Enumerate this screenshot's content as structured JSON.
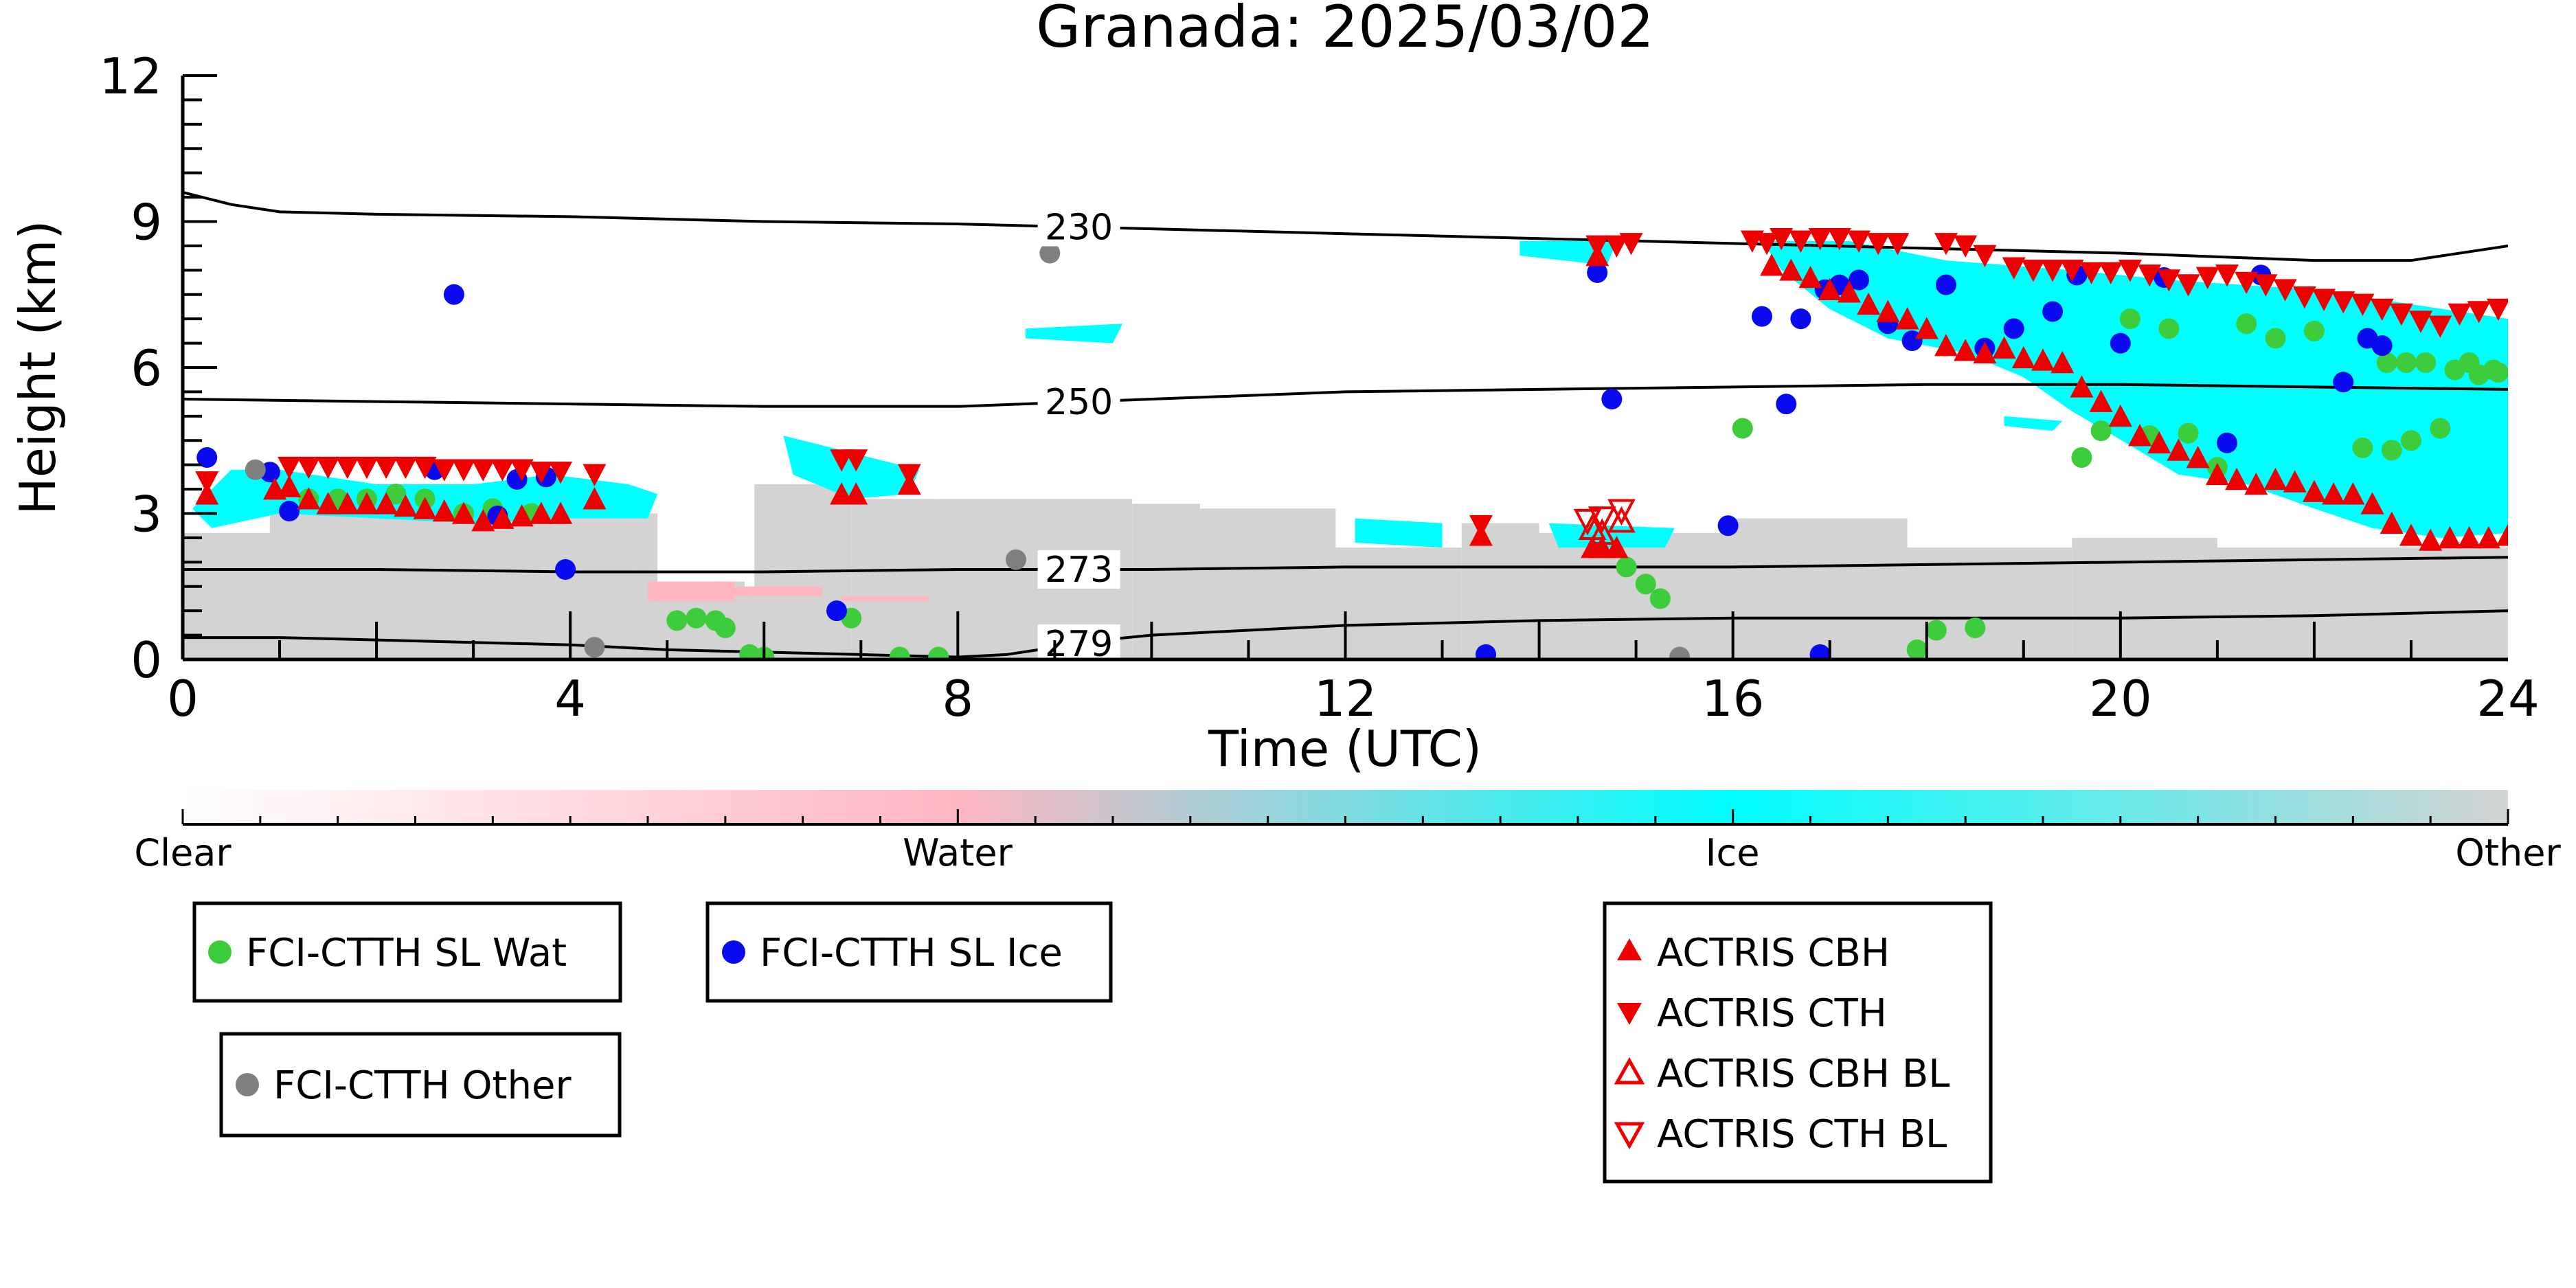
{
  "chart_data": {
    "type": "scatter",
    "title": "Granada: 2025/03/02",
    "xlabel": "Time (UTC)",
    "ylabel": "Height (km)",
    "xlim": [
      0,
      24
    ],
    "ylim": [
      0,
      12
    ],
    "x_ticks": [
      "0",
      "4",
      "8",
      "12",
      "16",
      "20",
      "24"
    ],
    "y_ticks": [
      "0",
      "3",
      "6",
      "9",
      "12"
    ],
    "colorbar": {
      "labels": [
        "Clear",
        "Water",
        "Ice",
        "Other"
      ],
      "colors": [
        "#ffffff",
        "#ffb6c1",
        "#00ffff",
        "#d3d3d3"
      ]
    },
    "isotherms": [
      {
        "label": "230",
        "x": [
          0,
          0.5,
          1,
          2,
          4,
          6,
          8,
          10,
          12,
          14,
          16,
          18,
          20,
          22,
          23,
          23.5,
          24
        ],
        "y": [
          9.6,
          9.35,
          9.2,
          9.15,
          9.1,
          9.0,
          8.95,
          8.85,
          8.75,
          8.65,
          8.55,
          8.45,
          8.35,
          8.2,
          8.2,
          8.35,
          8.5
        ]
      },
      {
        "label": "250",
        "x": [
          0,
          2,
          4,
          6,
          8,
          10,
          12,
          14,
          16,
          18,
          20,
          22,
          24
        ],
        "y": [
          5.35,
          5.3,
          5.25,
          5.2,
          5.2,
          5.35,
          5.5,
          5.55,
          5.6,
          5.65,
          5.65,
          5.6,
          5.55
        ]
      },
      {
        "label": "273",
        "x": [
          0,
          2,
          4,
          6,
          8,
          10,
          12,
          14,
          16,
          18,
          20,
          22,
          24
        ],
        "y": [
          1.85,
          1.85,
          1.8,
          1.8,
          1.85,
          1.85,
          1.9,
          1.9,
          1.9,
          1.95,
          2.0,
          2.05,
          2.1
        ]
      },
      {
        "label": "279",
        "x": [
          0,
          1,
          2,
          3,
          4,
          5,
          6,
          7,
          8,
          8.5,
          9,
          9.5,
          10,
          11,
          12,
          14,
          16,
          18,
          20,
          22,
          24
        ],
        "y": [
          0.45,
          0.45,
          0.4,
          0.35,
          0.3,
          0.2,
          0.15,
          0.1,
          0.05,
          0.1,
          0.25,
          0.4,
          0.5,
          0.6,
          0.7,
          0.8,
          0.85,
          0.85,
          0.85,
          0.9,
          1.0
        ]
      }
    ],
    "cloud_mask": {
      "other": [
        [
          0,
          0,
          2.6
        ],
        [
          0.9,
          0,
          3.1
        ],
        [
          4.65,
          0,
          3.0
        ],
        [
          4.9,
          0,
          1.6
        ],
        [
          5.8,
          0,
          1.3
        ],
        [
          5.9,
          0,
          3.6
        ],
        [
          6.9,
          0,
          3.3
        ],
        [
          7.8,
          0,
          3.3
        ],
        [
          9.8,
          0,
          3.2
        ],
        [
          10.5,
          0,
          3.1
        ],
        [
          11.9,
          0,
          2.3
        ],
        [
          13.2,
          0,
          2.8
        ],
        [
          14.0,
          0,
          2.6
        ],
        [
          16.0,
          0,
          2.9
        ],
        [
          17.8,
          0,
          2.3
        ],
        [
          19.5,
          0,
          2.5
        ],
        [
          21.0,
          0,
          2.3
        ],
        [
          24,
          0,
          2.4
        ]
      ],
      "water": [
        [
          4.8,
          1.2,
          1.6
        ],
        [
          5.7,
          1.3,
          1.5
        ],
        [
          6.8,
          1.2,
          1.3
        ]
      ],
      "ice": [
        [
          [
            0.1,
            3.1
          ],
          [
            0.5,
            3.9
          ],
          [
            1.0,
            3.9
          ],
          [
            2.0,
            3.6
          ],
          [
            3.0,
            3.6
          ],
          [
            3.8,
            3.8
          ],
          [
            4.6,
            3.6
          ],
          [
            4.9,
            3.4
          ],
          [
            4.8,
            2.9
          ],
          [
            4.0,
            2.9
          ],
          [
            3.0,
            2.8
          ],
          [
            2.0,
            2.9
          ],
          [
            1.0,
            3.0
          ],
          [
            0.3,
            2.7
          ]
        ],
        [
          [
            6.2,
            4.6
          ],
          [
            7.0,
            4.2
          ],
          [
            7.6,
            3.9
          ],
          [
            7.5,
            3.4
          ],
          [
            6.9,
            3.3
          ],
          [
            6.3,
            3.8
          ]
        ],
        [
          [
            8.7,
            6.8
          ],
          [
            9.7,
            6.9
          ],
          [
            9.6,
            6.5
          ],
          [
            8.7,
            6.6
          ]
        ],
        [
          [
            12.1,
            2.9
          ],
          [
            13.0,
            2.8
          ],
          [
            13.0,
            2.3
          ],
          [
            12.1,
            2.4
          ]
        ],
        [
          [
            13.8,
            8.6
          ],
          [
            14.8,
            8.6
          ],
          [
            14.7,
            8.1
          ],
          [
            13.8,
            8.3
          ]
        ],
        [
          [
            14.1,
            2.8
          ],
          [
            15.4,
            2.7
          ],
          [
            15.3,
            2.3
          ],
          [
            14.2,
            2.3
          ]
        ],
        [
          [
            16.3,
            8.6
          ],
          [
            17.2,
            8.6
          ],
          [
            18.2,
            8.2
          ],
          [
            19.5,
            8.0
          ],
          [
            20.5,
            7.8
          ],
          [
            22.0,
            7.6
          ],
          [
            23.0,
            7.3
          ],
          [
            24.0,
            7.0
          ],
          [
            24.0,
            2.6
          ],
          [
            23.3,
            2.5
          ],
          [
            22.6,
            2.7
          ],
          [
            22.0,
            3.1
          ],
          [
            21.3,
            3.6
          ],
          [
            20.6,
            3.8
          ],
          [
            20.1,
            4.4
          ],
          [
            19.5,
            5.1
          ],
          [
            19.0,
            5.8
          ],
          [
            18.4,
            6.3
          ],
          [
            17.6,
            6.6
          ],
          [
            17.0,
            7.2
          ],
          [
            16.5,
            8.0
          ]
        ],
        [
          [
            18.8,
            5.0
          ],
          [
            19.4,
            4.9
          ],
          [
            19.3,
            4.7
          ],
          [
            18.8,
            4.8
          ]
        ]
      ]
    },
    "series": [
      {
        "name": "FCI-CTTH SL Wat",
        "marker": "circle",
        "color": "#3ccc3c",
        "x": [
          1.3,
          1.6,
          1.9,
          2.2,
          2.5,
          2.9,
          3.2,
          3.6,
          5.1,
          5.3,
          5.5,
          5.6,
          5.85,
          6.0,
          6.9,
          7.4,
          7.8,
          14.9,
          15.1,
          15.25,
          16.1,
          17.9,
          18.1,
          18.5,
          19.6,
          19.8,
          20.1,
          20.3,
          20.5,
          20.7,
          21.0,
          21.3,
          21.6,
          22.0,
          22.5,
          22.8,
          23.0,
          23.3,
          23.6,
          23.9
        ],
        "y": [
          3.3,
          3.3,
          3.3,
          3.4,
          3.3,
          3.0,
          3.1,
          3.0,
          0.8,
          0.85,
          0.8,
          0.65,
          0.1,
          0.05,
          0.85,
          0.05,
          0.05,
          1.9,
          1.55,
          1.25,
          4.75,
          0.2,
          0.6,
          0.65,
          4.15,
          4.7,
          7.0,
          4.6,
          6.8,
          4.65,
          3.95,
          6.9,
          6.6,
          6.75,
          4.35,
          4.3,
          4.5,
          4.75,
          6.1,
          5.9
        ],
        "y_hi": [
          null,
          null,
          null,
          null,
          null,
          null,
          null,
          null,
          null,
          null,
          null,
          null,
          null,
          null,
          null,
          null,
          null,
          null,
          null,
          null,
          null,
          null,
          null,
          null,
          null,
          null,
          null,
          null,
          null,
          null,
          null,
          null,
          null,
          null,
          null,
          null,
          null,
          null,
          6.1,
          5.95
        ],
        "extra": [
          [
            22.75,
            6.1
          ],
          [
            22.95,
            6.1
          ],
          [
            23.15,
            6.1
          ],
          [
            23.45,
            5.95
          ],
          [
            23.7,
            5.85
          ],
          [
            23.85,
            5.95
          ]
        ]
      },
      {
        "name": "FCI-CTTH SL Ice",
        "marker": "circle",
        "color": "#0a0aee",
        "x": [
          0.25,
          0.9,
          1.1,
          2.8,
          2.6,
          3.45,
          3.25,
          3.75,
          3.95,
          6.75,
          13.45,
          14.6,
          14.75,
          15.95,
          16.3,
          16.55,
          16.7,
          16.95,
          17.1,
          17.3,
          17.6,
          17.85,
          18.2,
          18.6,
          18.9,
          19.3,
          19.55,
          20.0,
          20.45,
          22.3,
          22.55,
          22.7,
          21.1,
          21.45,
          16.9
        ],
        "y": [
          4.15,
          3.85,
          3.05,
          7.5,
          3.9,
          3.7,
          2.95,
          3.75,
          1.85,
          1.0,
          0.1,
          7.95,
          5.35,
          2.75,
          7.05,
          5.25,
          7.0,
          7.6,
          7.7,
          7.8,
          6.9,
          6.55,
          7.7,
          6.4,
          6.8,
          7.15,
          7.9,
          6.5,
          7.85,
          5.7,
          6.6,
          6.45,
          4.45,
          7.9,
          0.1
        ],
        "color_note": ""
      },
      {
        "name": "FCI-CTTH Other",
        "marker": "circle",
        "color": "#808080",
        "x": [
          0.75,
          4.25,
          8.6,
          8.95,
          15.45
        ],
        "y": [
          3.9,
          0.25,
          2.05,
          8.35,
          0.05
        ]
      },
      {
        "name": "ACTRIS CBH",
        "marker": "triangle-up",
        "color": "#ee0000",
        "x": [
          0.25,
          0.95,
          1.1,
          1.3,
          1.5,
          1.7,
          1.9,
          2.1,
          2.3,
          2.5,
          2.7,
          2.9,
          3.1,
          3.3,
          3.5,
          3.7,
          3.9,
          4.25,
          6.8,
          6.95,
          7.5,
          13.4,
          14.55,
          14.65,
          14.8,
          16.4,
          16.6,
          16.8,
          17.0,
          17.2,
          17.4,
          17.6,
          17.8,
          18.0,
          18.2,
          18.4,
          18.6,
          18.8,
          19.0,
          19.2,
          19.4,
          19.6,
          19.8,
          20.0,
          20.2,
          20.4,
          20.6,
          20.8,
          21.0,
          21.2,
          21.4,
          21.6,
          21.8,
          22.0,
          22.2,
          22.4,
          22.6,
          22.8,
          23.0,
          23.2,
          23.4,
          23.6,
          23.8,
          24.0,
          14.6
        ],
        "y": [
          3.4,
          3.5,
          3.55,
          3.3,
          3.2,
          3.2,
          3.2,
          3.2,
          3.15,
          3.1,
          3.05,
          3.0,
          2.85,
          2.9,
          2.95,
          3.0,
          3.0,
          3.3,
          3.4,
          3.4,
          3.6,
          2.55,
          2.3,
          2.3,
          2.3,
          8.1,
          8.0,
          7.85,
          7.6,
          7.55,
          7.3,
          7.15,
          7.0,
          6.8,
          6.45,
          6.35,
          6.3,
          6.4,
          6.2,
          6.15,
          6.1,
          5.6,
          5.3,
          5.0,
          4.6,
          4.45,
          4.3,
          4.15,
          3.8,
          3.7,
          3.6,
          3.7,
          3.65,
          3.45,
          3.4,
          3.4,
          3.2,
          2.8,
          2.55,
          2.45,
          2.5,
          2.5,
          2.5,
          2.55,
          8.3
        ]
      },
      {
        "name": "ACTRIS CTH",
        "marker": "triangle-down",
        "color": "#ee0000",
        "x": [
          0.25,
          1.1,
          1.3,
          1.5,
          1.7,
          1.9,
          2.1,
          2.3,
          2.5,
          2.7,
          2.9,
          3.1,
          3.3,
          3.5,
          3.7,
          3.9,
          4.25,
          6.8,
          6.95,
          7.5,
          13.4,
          14.6,
          14.8,
          14.95,
          16.5,
          16.7,
          16.9,
          17.1,
          17.3,
          17.5,
          17.7,
          18.2,
          18.4,
          18.6,
          18.9,
          19.1,
          19.3,
          19.5,
          19.7,
          19.9,
          20.1,
          20.3,
          20.5,
          20.7,
          20.9,
          21.1,
          21.3,
          21.5,
          21.7,
          21.9,
          22.1,
          22.3,
          22.5,
          22.7,
          22.9,
          23.1,
          23.3,
          23.5,
          23.7,
          23.9,
          16.2,
          16.35
        ],
        "y": [
          3.65,
          3.95,
          3.95,
          3.95,
          3.95,
          3.95,
          3.95,
          3.95,
          3.95,
          3.9,
          3.9,
          3.9,
          3.9,
          3.9,
          3.85,
          3.85,
          3.8,
          4.1,
          4.1,
          3.8,
          2.75,
          8.5,
          8.5,
          8.55,
          8.65,
          8.6,
          8.65,
          8.65,
          8.6,
          8.55,
          8.55,
          8.55,
          8.5,
          8.3,
          8.05,
          8.0,
          8.0,
          8.0,
          7.95,
          7.95,
          8.0,
          7.9,
          7.8,
          7.7,
          7.85,
          7.9,
          7.75,
          7.7,
          7.6,
          7.45,
          7.4,
          7.35,
          7.3,
          7.2,
          7.1,
          6.95,
          6.85,
          7.1,
          7.15,
          7.2,
          8.6,
          8.55
        ]
      },
      {
        "name": "ACTRIS CBH BL",
        "marker": "triangle-up-open",
        "color": "#ee0000",
        "x": [
          14.55,
          14.65,
          14.85
        ],
        "y": [
          2.7,
          2.6,
          2.85
        ]
      },
      {
        "name": "ACTRIS CTH BL",
        "marker": "triangle-down-open",
        "color": "#ee0000",
        "x": [
          14.5,
          14.65,
          14.85
        ],
        "y": [
          2.85,
          2.9,
          3.05
        ]
      }
    ]
  }
}
